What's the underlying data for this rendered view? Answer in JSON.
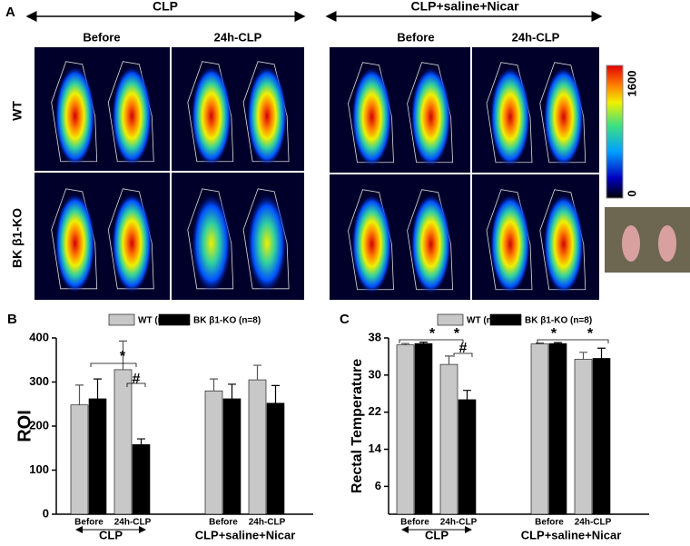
{
  "panel_a": {
    "label": "A",
    "groups": [
      "CLP",
      "CLP+saline+Nicar"
    ],
    "columns": [
      "Before",
      "24h-CLP",
      "Before",
      "24h-CLP"
    ],
    "rows": [
      "WT",
      "BK β1-KO"
    ],
    "colorbar": {
      "max": 1600,
      "min": 0
    }
  },
  "chart_data": [
    {
      "type": "bar",
      "panel": "B",
      "y_label": "ROI",
      "categories": [
        "Before",
        "24h-CLP",
        "Before",
        "24h-CLP"
      ],
      "group_labels": [
        "CLP",
        "CLP+saline+Nicar"
      ],
      "series": [
        {
          "name": "WT (n=8)",
          "color": "#c8c8c8",
          "values": [
            248,
            328,
            280,
            305
          ],
          "errors": [
            45,
            65,
            27,
            33
          ]
        },
        {
          "name": "BK β1-KO (n=8)",
          "color": "#000000",
          "values": [
            262,
            158,
            262,
            252
          ],
          "errors": [
            45,
            13,
            33,
            40
          ]
        }
      ],
      "ylim": [
        0,
        400
      ],
      "yticks": [
        0,
        100,
        200,
        300,
        400
      ],
      "annotations": [
        "*",
        "#"
      ]
    },
    {
      "type": "bar",
      "panel": "C",
      "y_label": "Rectal Temperature",
      "categories": [
        "Before",
        "24h-CLP",
        "Before",
        "24h-CLP"
      ],
      "group_labels": [
        "CLP",
        "CLP+saline+Nicar"
      ],
      "series": [
        {
          "name": "WT (n=8)",
          "color": "#c8c8c8",
          "values": [
            36.5,
            32.3,
            36.7,
            33.4
          ],
          "errors": [
            0.3,
            1.8,
            0.2,
            1.5
          ]
        },
        {
          "name": "BK β1-KO (n=8)",
          "color": "#000000",
          "values": [
            36.8,
            24.7,
            36.8,
            33.6
          ],
          "errors": [
            0.3,
            2,
            0.2,
            2.2
          ]
        }
      ],
      "ylim": [
        0,
        38
      ],
      "yticks": [
        6,
        14,
        22,
        30,
        38
      ],
      "annotations": [
        "*",
        "*",
        "#",
        "*",
        "*"
      ]
    }
  ]
}
